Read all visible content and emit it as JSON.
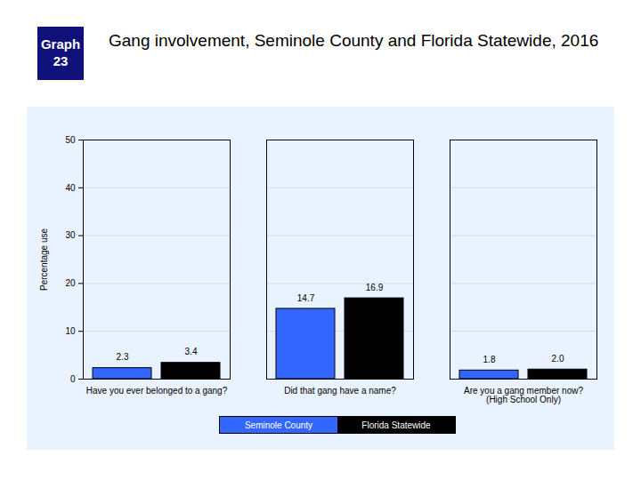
{
  "chart_data": {
    "type": "bar",
    "label": "Graph 23",
    "title": "Gang involvement, Seminole County and Florida Statewide, 2016",
    "y_label": "Percentage use",
    "categories": [
      "Have you ever belonged to a gang?",
      "Did that gang have a name?",
      "Are you a gang member now?\n(High School Only)"
    ],
    "series": [
      {
        "name": "Seminole County",
        "color": "#3366ff",
        "values": [
          2.3,
          14.7,
          1.8
        ],
        "value_labels": [
          "2.3",
          "14.7",
          "1.8"
        ]
      },
      {
        "name": "Florida Statewide",
        "color": "#000000",
        "values": [
          3.4,
          16.9,
          2.0
        ],
        "value_labels": [
          "3.4",
          "16.9",
          "2.0"
        ]
      }
    ],
    "ylim": [
      0,
      50
    ],
    "yticks": [
      0,
      10,
      20,
      30,
      40,
      50
    ],
    "grid": true,
    "data_labels": true,
    "legend": "bottom"
  }
}
